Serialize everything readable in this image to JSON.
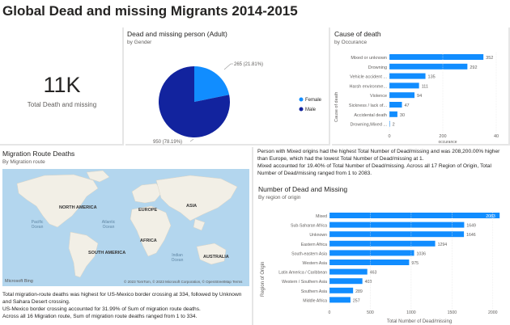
{
  "report": {
    "title": "Global Dead and missing Migrants 2014-2015"
  },
  "kpi": {
    "value": "11K",
    "label": "Total Death and missing"
  },
  "pie": {
    "title": "Dead and missing person (Adult)",
    "subtitle": "by Gender",
    "slices": [
      {
        "name": "Female",
        "value": 265,
        "label": "265 (21.81%)",
        "color": "#118dff"
      },
      {
        "name": "Male",
        "value": 950,
        "label": "950 (78.19%)",
        "color": "#12239e"
      }
    ],
    "legend": [
      "Female",
      "Male"
    ]
  },
  "cause": {
    "title": "Cause of death",
    "subtitle": "by Occurance",
    "ylabel": "Cause of death",
    "xlabel": "occurance",
    "ticks": [
      "0",
      "200",
      "40"
    ],
    "categories": [
      "Mixed or unknown",
      "Drowning",
      "Vehicle accident ...",
      "Harsh environme...",
      "Violence",
      "Sickness / lack of...",
      "Accidental death",
      "Drowning,Mixed ..."
    ],
    "values": [
      352,
      292,
      135,
      111,
      94,
      47,
      30,
      2
    ],
    "color": "#118dff"
  },
  "map": {
    "title": "Migration Route Deaths",
    "subtitle": "By Migration route",
    "continents": [
      "NORTH AMERICA",
      "EUROPE",
      "ASIA",
      "AFRICA",
      "SOUTH AMERICA",
      "AUSTRALIA"
    ],
    "oceans": [
      "Pacific Ocean",
      "Atlantic Ocean",
      "Indian Ocean"
    ],
    "brand": "Microsoft Bing",
    "credit": "© 2023 TomTom, © 2023 Microsoft Corporation, © OpenStreetMap   Terms",
    "narrative": [
      "Total migration-route deaths was highest for US-Mexico border crossing at 334, followed by Unknown and Sahara Desert crossing.",
      "US-Mexico border crossing accounted for 31.99% of Sum of migration route deaths.",
      "Across all 16 Migration route, Sum of migration route deaths ranged from 1 to 334."
    ]
  },
  "origin": {
    "narrative": [
      "Person with Mixed origins had the highest Total Number of Dead/missing and was 208,200.00% higher than Europe, which had the lowest Total Number of Dead/missing at 1.",
      "Mixed accounted for 19.40% of Total Number of Dead/missing. Across all 17 Region of Origin, Total Number of Dead/missing ranged from 1 to 2083."
    ],
    "title": "Number of Dead and Missing",
    "subtitle": "By region of origin",
    "ylabel": "Region of Origin",
    "xlabel": "Total Number of Dead/missing",
    "ticks": [
      "0",
      "500",
      "1000",
      "1500",
      "2000"
    ],
    "categories": [
      "Mixed",
      "Sub-Saharan Africa",
      "Unknown",
      "Eastern Africa",
      "South-eastern Asia",
      "Western Asia",
      "Latin America / Caribbean",
      "Western / Southern Asia",
      "Southern Asia",
      "Middle Africa"
    ],
    "values": [
      2083,
      1649,
      1646,
      1294,
      1036,
      975,
      463,
      403,
      289,
      257
    ],
    "color": "#118dff"
  }
}
